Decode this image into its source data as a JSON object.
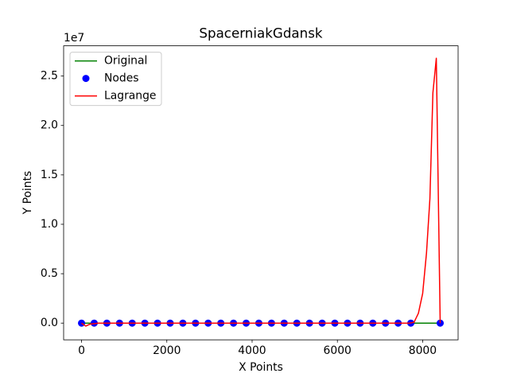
{
  "chart_data": {
    "type": "line",
    "title": "SpacerniakGdansk",
    "x_label": "X Points",
    "y_label": "Y Points",
    "y_offset_label": "1e7",
    "xlim": [
      -420,
      8831
    ],
    "ylim": [
      -1690000,
      28060000
    ],
    "xticks": [
      0,
      2000,
      4000,
      6000,
      8000
    ],
    "yticks": [
      {
        "value": 0,
        "label": "0.0"
      },
      {
        "value": 5000000,
        "label": "0.5"
      },
      {
        "value": 10000000,
        "label": "1.0"
      },
      {
        "value": 15000000,
        "label": "1.5"
      },
      {
        "value": 20000000,
        "label": "2.0"
      },
      {
        "value": 25000000,
        "label": "2.5"
      }
    ],
    "legend": "upper left",
    "series": [
      {
        "name": "Original",
        "color": "#008000",
        "type": "line",
        "x": [
          0,
          297,
          594,
          891,
          1188,
          1485,
          1782,
          2079,
          2376,
          2673,
          2970,
          3267,
          3564,
          3861,
          4158,
          4455,
          4752,
          5049,
          5346,
          5643,
          5940,
          6237,
          6534,
          6831,
          7128,
          7425,
          7722,
          8411
        ],
        "values": [
          0,
          0,
          0,
          0,
          0,
          0,
          0,
          0,
          0,
          0,
          0,
          0,
          0,
          0,
          0,
          0,
          0,
          0,
          0,
          0,
          0,
          0,
          0,
          0,
          0,
          0,
          0,
          0
        ]
      },
      {
        "name": "Nodes",
        "color": "#0000ff",
        "type": "scatter",
        "x": [
          0,
          297,
          594,
          891,
          1188,
          1485,
          1782,
          2079,
          2376,
          2673,
          2970,
          3267,
          3564,
          3861,
          4158,
          4455,
          4752,
          5049,
          5346,
          5643,
          5940,
          6237,
          6534,
          6831,
          7128,
          7425,
          7722,
          8411
        ],
        "values": [
          0,
          0,
          0,
          0,
          0,
          0,
          0,
          0,
          0,
          0,
          0,
          0,
          0,
          0,
          0,
          0,
          0,
          0,
          0,
          0,
          0,
          0,
          0,
          0,
          0,
          0,
          0,
          0
        ]
      },
      {
        "name": "Lagrange",
        "color": "#ff0000",
        "type": "line",
        "x": [
          0,
          100,
          200,
          400,
          7700,
          7800,
          7900,
          8000,
          8090,
          8170,
          8240,
          8320,
          8411
        ],
        "values": [
          0,
          -300000,
          -100000,
          0,
          0,
          100000,
          1000000,
          3000000,
          7100000,
          12600000,
          23300000,
          26800000,
          0
        ]
      }
    ]
  }
}
